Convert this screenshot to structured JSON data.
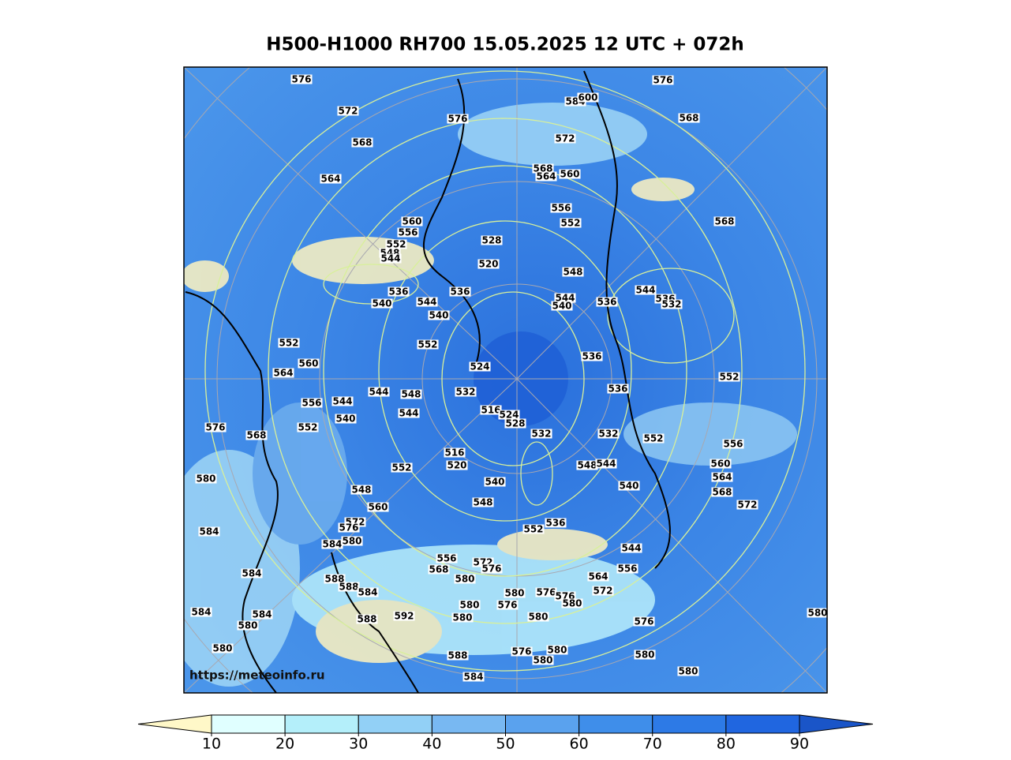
{
  "title": "H500-H1000 RH700 15.05.2025 12 UTC + 072h",
  "map": {
    "watermark": "https://meteoinfo.ru",
    "contour_labels": [
      576,
      572,
      568,
      564,
      576,
      584,
      600,
      576,
      568,
      572,
      568,
      564,
      560,
      556,
      552,
      568,
      560,
      556,
      552,
      548,
      544,
      528,
      520,
      548,
      536,
      540,
      544,
      536,
      540,
      544,
      540,
      536,
      544,
      536,
      532,
      552,
      552,
      560,
      564,
      524,
      536,
      552,
      544,
      548,
      532,
      536,
      556,
      544,
      540,
      544,
      516,
      524,
      528,
      552,
      568,
      576,
      532,
      532,
      552,
      556,
      516,
      520,
      552,
      548,
      544,
      560,
      580,
      540,
      540,
      564,
      548,
      568,
      572,
      548,
      560,
      536,
      552,
      584,
      572,
      576,
      584,
      580,
      544,
      584,
      556,
      568,
      572,
      576,
      556,
      564,
      588,
      588,
      584,
      580,
      572,
      580,
      576,
      576,
      580,
      584,
      584,
      592,
      588,
      580,
      576,
      580,
      580,
      576,
      580,
      580,
      580,
      588,
      576,
      580,
      580,
      580,
      580,
      584
    ]
  },
  "colorbar": {
    "ticks": [
      10,
      20,
      30,
      40,
      50,
      60,
      70,
      80,
      90
    ],
    "colors": [
      "#fff8c8",
      "#e0ffff",
      "#b4effa",
      "#92d0f6",
      "#78b8f2",
      "#5aa2ee",
      "#3f8eea",
      "#2d7ae6",
      "#2066e0",
      "#1a55c8"
    ]
  }
}
